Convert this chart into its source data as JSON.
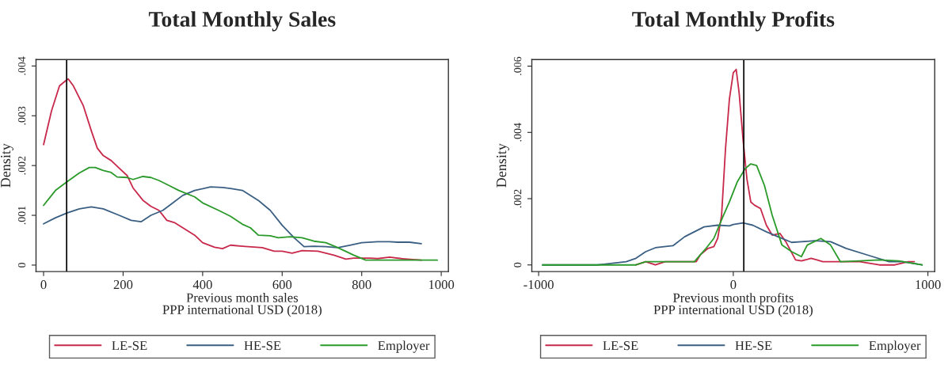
{
  "chart_data": [
    {
      "type": "line",
      "title": "Total Monthly Sales",
      "xlabel": "Previous month sales\nPPP international USD (2018)",
      "ylabel": "Density",
      "xlim": [
        -19,
        1018
      ],
      "ylim": [
        -0.00013,
        0.00413
      ],
      "xticks": [
        0,
        200,
        400,
        600,
        800,
        1000
      ],
      "yticks": [
        {
          "value": 0,
          "label": "0"
        },
        {
          "value": 0.001,
          "label": ".001"
        },
        {
          "value": 0.002,
          "label": ".002"
        },
        {
          "value": 0.003,
          "label": ".003"
        },
        {
          "value": 0.004,
          "label": ".004"
        }
      ],
      "grid": false,
      "legend": "bottom",
      "line_style": "solid",
      "marker": "none",
      "ref_lines": [
        {
          "axis": "x",
          "value": 58,
          "color": "#000000"
        }
      ],
      "series": [
        {
          "name": "LE-SE",
          "color": "#c8284a",
          "x": [
            0,
            20,
            40,
            55,
            62,
            75,
            100,
            120,
            135,
            150,
            170,
            190,
            210,
            225,
            250,
            270,
            290,
            310,
            330,
            350,
            380,
            400,
            430,
            450,
            470,
            500,
            550,
            580,
            600,
            625,
            650,
            690,
            730,
            760,
            780,
            820,
            840,
            870,
            900,
            950
          ],
          "values": [
            0.00242,
            0.0031,
            0.0036,
            0.0037,
            0.00374,
            0.0036,
            0.0032,
            0.0027,
            0.00235,
            0.0022,
            0.0021,
            0.00195,
            0.0018,
            0.00155,
            0.0013,
            0.00118,
            0.0011,
            0.0009,
            0.00085,
            0.00075,
            0.0006,
            0.00045,
            0.00036,
            0.00033,
            0.0004,
            0.00038,
            0.00035,
            0.00028,
            0.00028,
            0.00024,
            0.00029,
            0.00028,
            0.0002,
            0.00012,
            0.00014,
            0.00014,
            0.00013,
            0.00016,
            0.00013,
            0.0001
          ]
        },
        {
          "name": "HE-SE",
          "color": "#3a5f82",
          "x": [
            0,
            30,
            60,
            90,
            120,
            150,
            190,
            220,
            245,
            270,
            300,
            320,
            350,
            380,
            420,
            450,
            470,
            500,
            540,
            570,
            600,
            630,
            655,
            680,
            710,
            740,
            770,
            800,
            840,
            870,
            890,
            920,
            950
          ],
          "values": [
            0.00083,
            0.00095,
            0.00105,
            0.00113,
            0.00117,
            0.00113,
            0.001,
            0.0009,
            0.00087,
            0.001,
            0.0011,
            0.00122,
            0.0014,
            0.0015,
            0.00157,
            0.00156,
            0.00154,
            0.0015,
            0.0013,
            0.0011,
            0.0008,
            0.00055,
            0.00037,
            0.00038,
            0.00037,
            0.00035,
            0.0004,
            0.00045,
            0.00047,
            0.00047,
            0.00046,
            0.00046,
            0.00043
          ]
        },
        {
          "name": "Employer",
          "color": "#2a9a2a",
          "x": [
            0,
            30,
            60,
            90,
            115,
            130,
            150,
            170,
            185,
            210,
            225,
            250,
            270,
            290,
            315,
            340,
            380,
            400,
            440,
            470,
            500,
            520,
            540,
            570,
            590,
            620,
            650,
            680,
            710,
            740,
            780,
            810,
            850,
            900,
            950,
            990
          ],
          "values": [
            0.0012,
            0.0015,
            0.00168,
            0.00185,
            0.00196,
            0.00196,
            0.0019,
            0.00186,
            0.00177,
            0.00176,
            0.00172,
            0.00178,
            0.00176,
            0.0017,
            0.0016,
            0.0015,
            0.00137,
            0.00125,
            0.0011,
            0.00098,
            0.00082,
            0.00075,
            0.0006,
            0.00059,
            0.00055,
            0.00057,
            0.00055,
            0.00048,
            0.00045,
            0.00035,
            0.0002,
            0.0001,
            0.0001,
            0.0001,
            0.0001,
            0.0001
          ]
        }
      ]
    },
    {
      "type": "line",
      "title": "Total Monthly Profits",
      "xlabel": "Previous month profits\nPPP international USD (2018)",
      "ylabel": "Density",
      "xlim": [
        -1035,
        1035
      ],
      "ylim": [
        -0.0002,
        0.0062
      ],
      "xticks": [
        -1000,
        0,
        1000
      ],
      "yticks": [
        {
          "value": 0,
          "label": "0"
        },
        {
          "value": 0.002,
          "label": ".002"
        },
        {
          "value": 0.004,
          "label": ".004"
        },
        {
          "value": 0.006,
          "label": ".006"
        }
      ],
      "grid": false,
      "legend": "bottom",
      "line_style": "solid",
      "marker": "none",
      "ref_lines": [
        {
          "axis": "x",
          "value": 54,
          "color": "#000000"
        }
      ],
      "series": [
        {
          "name": "LE-SE",
          "color": "#c8284a",
          "x": [
            -500,
            -450,
            -400,
            -350,
            -300,
            -250,
            -190,
            -170,
            -130,
            -100,
            -80,
            -60,
            -40,
            -20,
            0,
            15,
            30,
            50,
            70,
            90,
            110,
            140,
            170,
            200,
            240,
            270,
            320,
            350,
            400,
            430,
            460,
            510,
            560,
            650,
            750,
            830,
            900,
            930
          ],
          "values": [
            0,
            0.0001,
            0,
            0.0001,
            0.0001,
            0.0001,
            0.0001,
            0.0003,
            0.0005,
            0.00055,
            0.0008,
            0.0015,
            0.0035,
            0.005,
            0.0058,
            0.0059,
            0.0052,
            0.0038,
            0.0026,
            0.0019,
            0.0018,
            0.0017,
            0.0012,
            0.0009,
            0.00095,
            0.0007,
            0.00015,
            0.00012,
            0.0002,
            0.00015,
            0.0001,
            0.0001,
            0.0001,
            0.0001,
            0,
            0,
            0.0001,
            0.0001
          ]
        },
        {
          "name": "HE-SE",
          "color": "#3a5f82",
          "x": [
            -980,
            -700,
            -550,
            -500,
            -450,
            -400,
            -310,
            -250,
            -150,
            -80,
            -20,
            0,
            50,
            100,
            170,
            230,
            300,
            350,
            420,
            500,
            580,
            700,
            800,
            870,
            970
          ],
          "values": [
            0,
            0,
            0.0001,
            0.0002,
            0.0004,
            0.00052,
            0.00058,
            0.00085,
            0.00115,
            0.0012,
            0.00118,
            0.00122,
            0.00127,
            0.0012,
            0.001,
            0.00085,
            0.00068,
            0.0007,
            0.00073,
            0.0007,
            0.0005,
            0.00028,
            0.0001,
            0.0001,
            0
          ]
        },
        {
          "name": "Employer",
          "color": "#2a9a2a",
          "x": [
            -980,
            -600,
            -500,
            -450,
            -300,
            -200,
            -170,
            -140,
            -100,
            -50,
            -20,
            20,
            60,
            90,
            120,
            160,
            200,
            250,
            300,
            350,
            380,
            450,
            500,
            550,
            650,
            750,
            850,
            970
          ],
          "values": [
            0,
            0,
            0,
            0.0001,
            0.0001,
            0.0001,
            0.0003,
            0.0005,
            0.0008,
            0.0015,
            0.0019,
            0.0025,
            0.0029,
            0.00305,
            0.003,
            0.0024,
            0.0015,
            0.0006,
            0.0004,
            0.00025,
            0.0006,
            0.0008,
            0.0006,
            0.0001,
            0.00012,
            0.00015,
            0.00012,
            0
          ]
        }
      ]
    }
  ]
}
